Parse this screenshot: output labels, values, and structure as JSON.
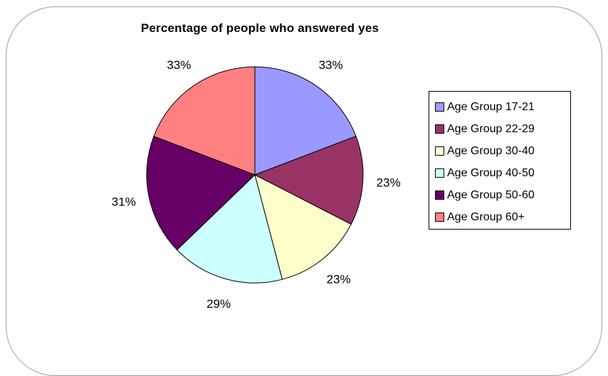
{
  "chart_data": {
    "type": "pie",
    "title": "Percentage of people who answered yes",
    "legend_position": "right",
    "categories": [
      "Age Group 17-21",
      "Age Group 22-29",
      "Age Group 30-40",
      "Age Group 40-50",
      "Age Group 50-60",
      "Age Group 60+"
    ],
    "values": [
      33,
      23,
      23,
      29,
      31,
      33
    ],
    "labels": [
      "33%",
      "23%",
      "23%",
      "29%",
      "31%",
      "33%"
    ],
    "colors": [
      "#9999ff",
      "#993366",
      "#ffffcc",
      "#ccffff",
      "#660066",
      "#ff8080"
    ],
    "start_angle": "12 o'clock",
    "direction": "clockwise"
  }
}
